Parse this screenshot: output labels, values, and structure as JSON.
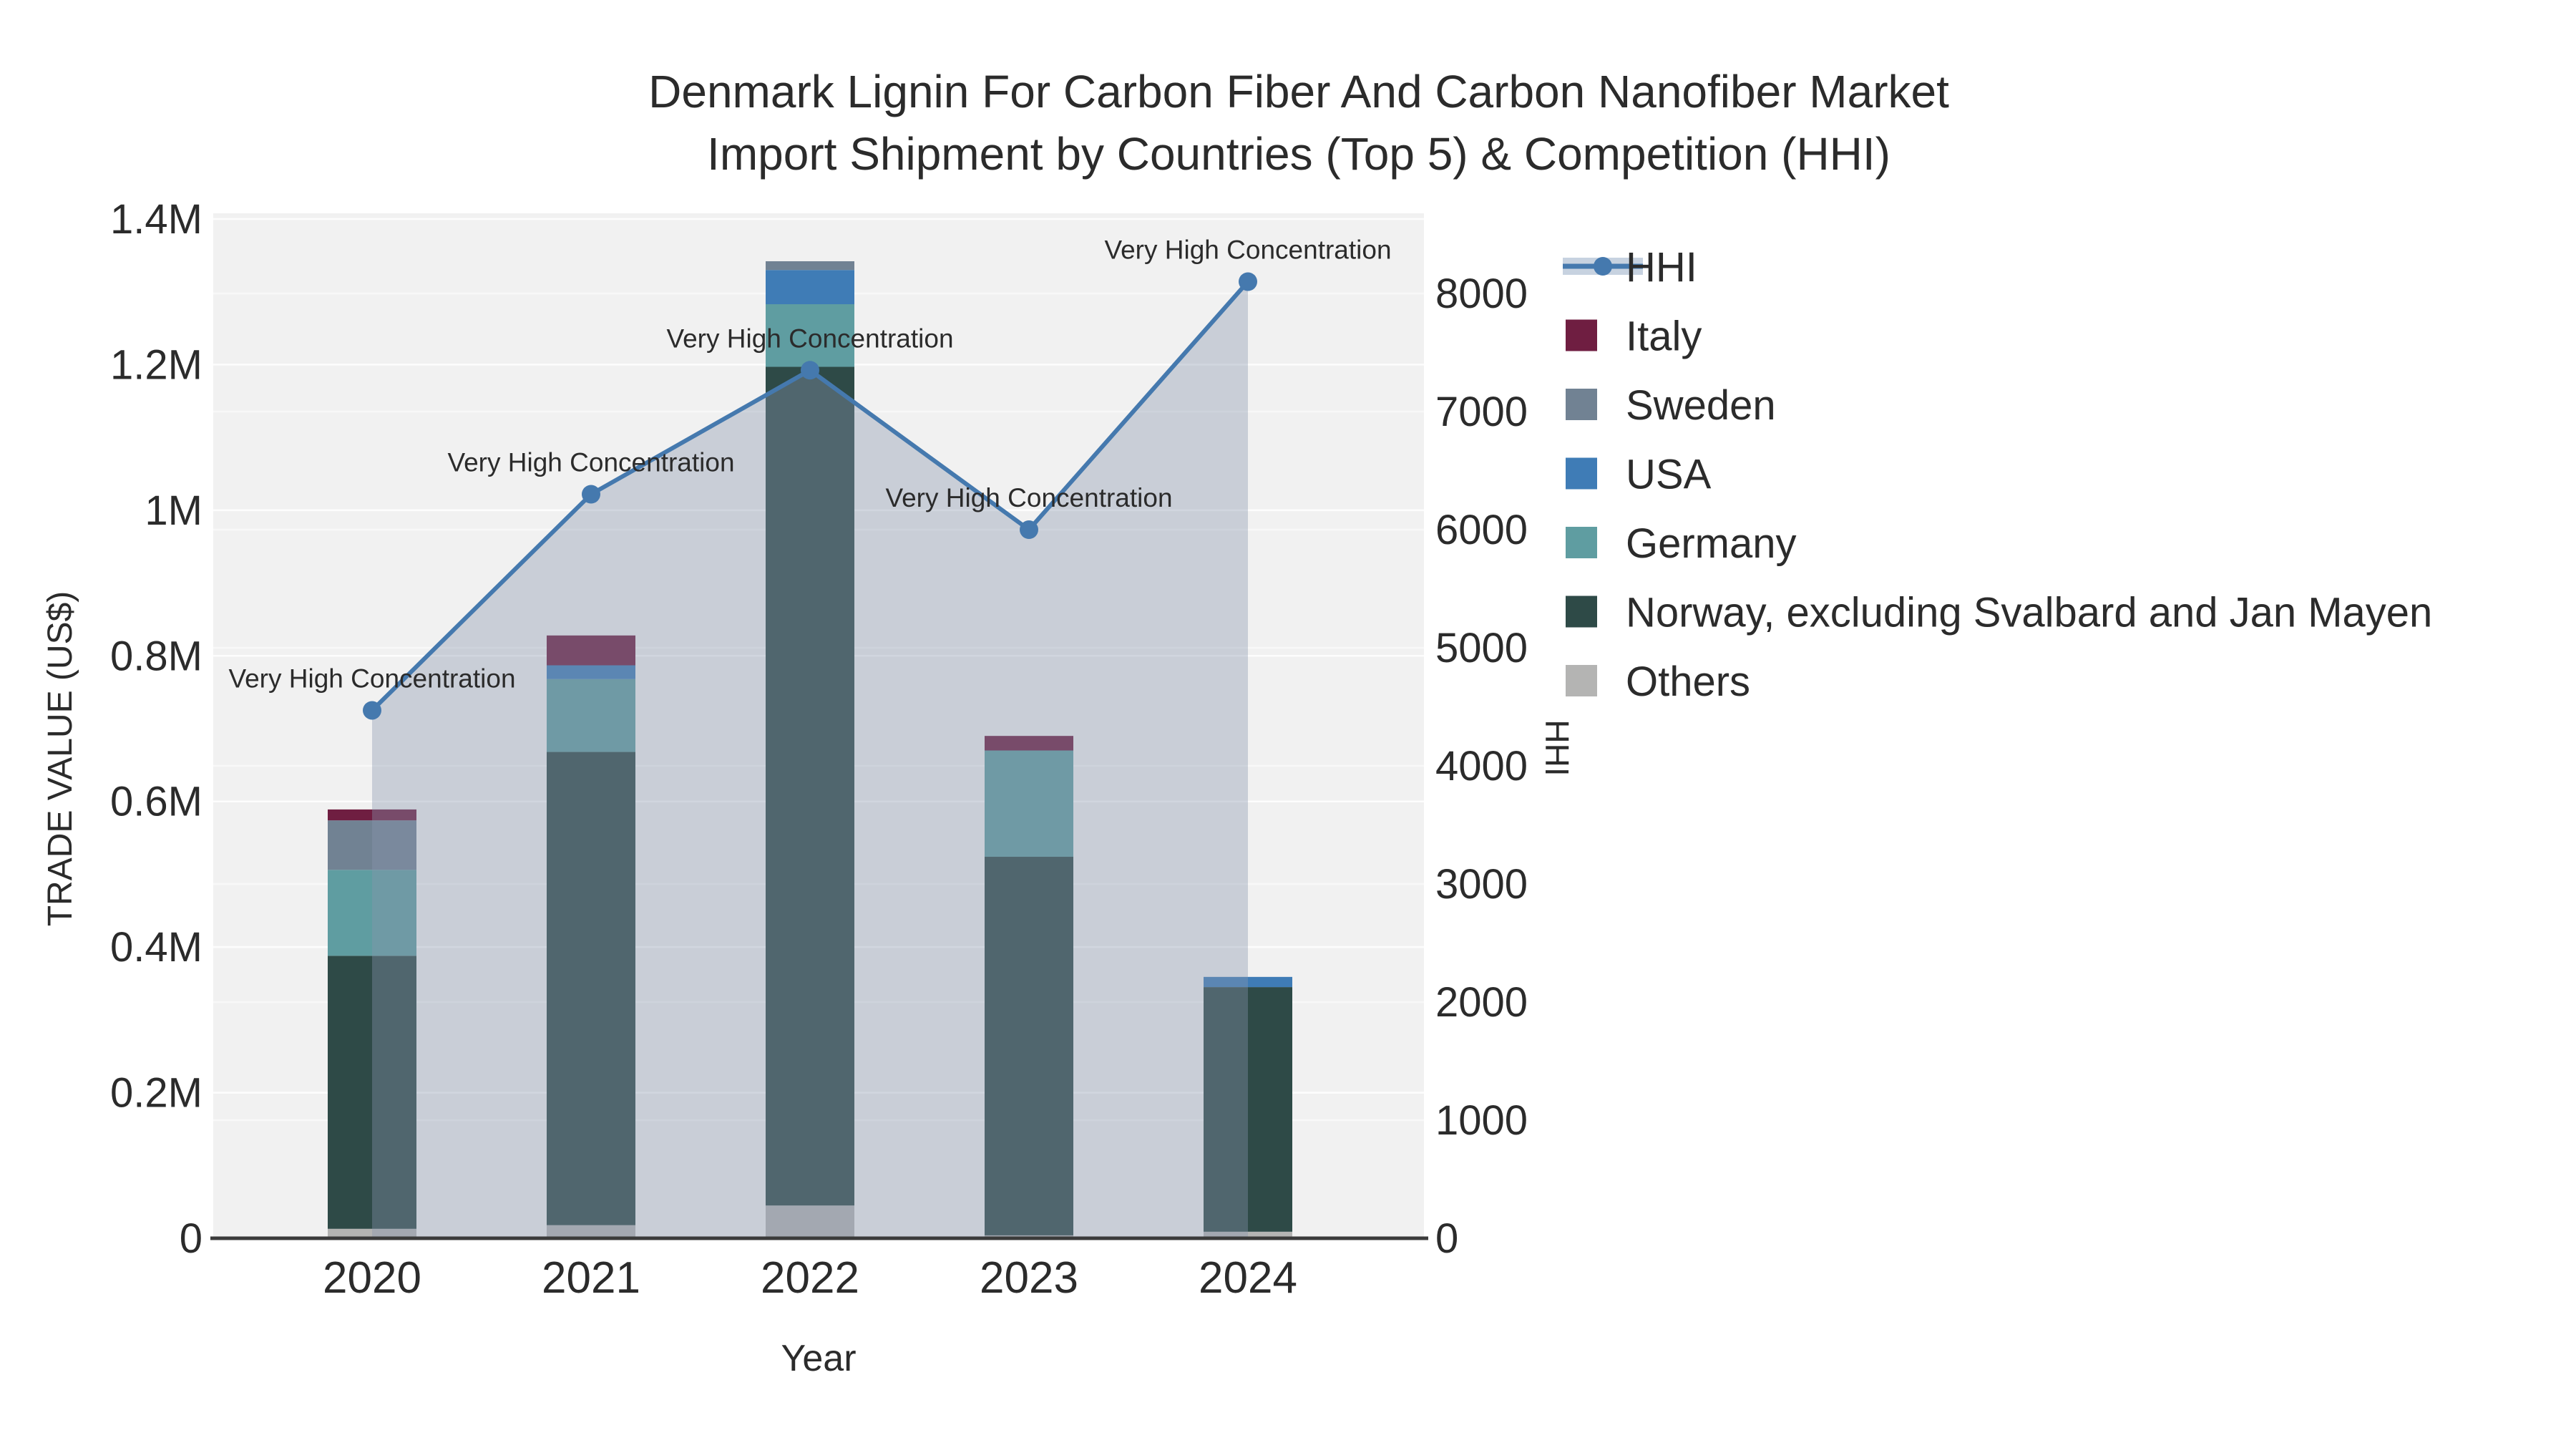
{
  "chart_data": {
    "type": "bar+line",
    "title": [
      "Denmark Lignin For Carbon Fiber And Carbon Nanofiber Market",
      "Import Shipment by Countries (Top 5) & Competition (HHI)"
    ],
    "xlabel": "Year",
    "ylabel": "TRADE VALUE (US$)",
    "ylabel_right": "HHI",
    "categories": [
      "2020",
      "2021",
      "2022",
      "2023",
      "2024"
    ],
    "bar_series": [
      {
        "name": "Others",
        "color": "#b4b4b3",
        "values": [
          13000,
          18000,
          45000,
          4000,
          9000
        ]
      },
      {
        "name": "Norway, excluding Svalbard and Jan Mayen",
        "color": "#2e4a47",
        "values": [
          375000,
          650000,
          1152000,
          520000,
          336000
        ]
      },
      {
        "name": "Germany",
        "color": "#5f9da1",
        "values": [
          118000,
          100000,
          86000,
          146000,
          0
        ]
      },
      {
        "name": "USA",
        "color": "#3f7cb6",
        "values": [
          0,
          19000,
          47000,
          0,
          14000
        ]
      },
      {
        "name": "Sweden",
        "color": "#718293",
        "values": [
          68000,
          0,
          12000,
          0,
          0
        ]
      },
      {
        "name": "Italy",
        "color": "#6f1e41",
        "values": [
          15000,
          41000,
          0,
          20000,
          0
        ]
      }
    ],
    "line_series": {
      "name": "HHI",
      "color": "#4579ae",
      "marker_color": "#4579ae",
      "area_fill": "rgba(136,150,174,0.38)",
      "values": [
        4470,
        6300,
        7350,
        6000,
        8100
      ]
    },
    "annotations": [
      "Very High Concentration",
      "Very High Concentration",
      "Very High Concentration",
      "Very High Concentration",
      "Very High Concentration"
    ],
    "axes": {
      "left": {
        "labels": [
          "0",
          "0.2M",
          "0.4M",
          "0.6M",
          "0.8M",
          "1M",
          "1.2M",
          "1.4M"
        ],
        "values": [
          0,
          200000,
          400000,
          600000,
          800000,
          1000000,
          1200000,
          1400000
        ],
        "max": 1400000
      },
      "right": {
        "labels": [
          "0",
          "1000",
          "2000",
          "3000",
          "4000",
          "5000",
          "6000",
          "7000",
          "8000"
        ],
        "values": [
          0,
          1000,
          2000,
          3000,
          4000,
          5000,
          6000,
          7000,
          8000
        ],
        "max": 8000
      }
    },
    "legend": [
      {
        "label": "HHI",
        "type": "line",
        "color": "#4579ae",
        "band": "#c7d2e0"
      },
      {
        "label": "Italy",
        "type": "swatch",
        "color": "#6f1e41"
      },
      {
        "label": "Sweden",
        "type": "swatch",
        "color": "#718293"
      },
      {
        "label": "USA",
        "type": "swatch",
        "color": "#3f7cb6"
      },
      {
        "label": "Germany",
        "type": "swatch",
        "color": "#5f9da1"
      },
      {
        "label": "Norway, excluding Svalbard and Jan Mayen",
        "type": "swatch",
        "color": "#2e4a47"
      },
      {
        "label": "Others",
        "type": "swatch",
        "color": "#b4b4b3"
      }
    ],
    "colors": {
      "plot_bg": "#f1f1f1",
      "grid": "#ffffff",
      "axis_line": "#3b3b3b",
      "text": "#2b2b2b"
    }
  }
}
